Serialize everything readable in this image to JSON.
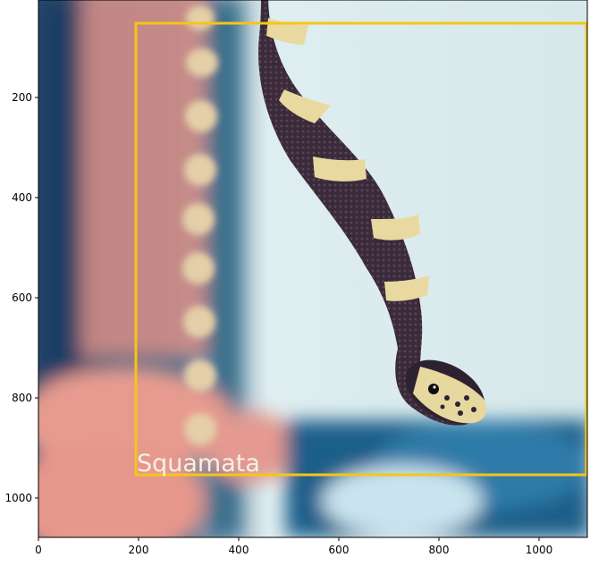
{
  "axes": {
    "x_ticks": [
      "0",
      "200",
      "400",
      "600",
      "800",
      "1000"
    ],
    "y_ticks": [
      "200",
      "400",
      "600",
      "800",
      "1000"
    ],
    "x_range": [
      0,
      1100
    ],
    "y_range": [
      1080,
      0
    ]
  },
  "image": {
    "subject_icon": "snake-photo",
    "colors": {
      "box": "#f5c518",
      "background_light": "#cfe3e6",
      "skin": "#e08a7e",
      "snake_dark": "#3a2a3a",
      "snake_band": "#e9d9a0"
    }
  },
  "detection": {
    "label": "Squamata",
    "box": {
      "x0": 195,
      "y0": 55,
      "x1": 1100,
      "y1": 958
    }
  }
}
